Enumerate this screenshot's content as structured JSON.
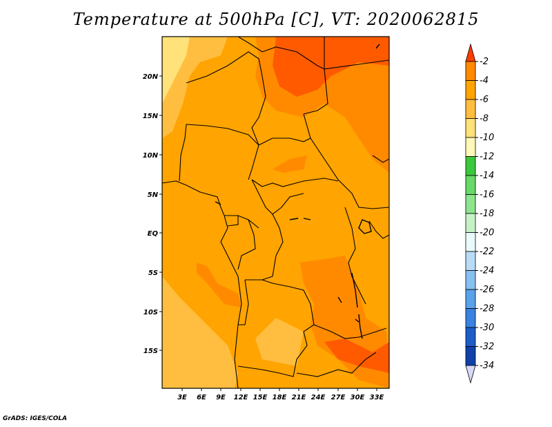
{
  "title": "Temperature at 500hPa [C], VT: 2020062815",
  "credit": "GrADS: IGES/COLA",
  "lat_ticks": [
    "20N",
    "15N",
    "10N",
    "5N",
    "EQ",
    "5S",
    "10S",
    "15S"
  ],
  "lon_ticks": [
    "3E",
    "6E",
    "9E",
    "12E",
    "15E",
    "18E",
    "21E",
    "24E",
    "27E",
    "30E",
    "33E"
  ],
  "colorbar": {
    "labels": [
      "-2",
      "-4",
      "-6",
      "-8",
      "-10",
      "-12",
      "-14",
      "-16",
      "-18",
      "-20",
      "-22",
      "-24",
      "-26",
      "-28",
      "-30",
      "-32",
      "-34"
    ],
    "colors": [
      "#ff5a00",
      "#ff8a00",
      "#ffa400",
      "#ffbe40",
      "#ffe27a",
      "#fff8b8",
      "#3cc83c",
      "#68d868",
      "#8ee48e",
      "#c4f2c4",
      "#e8fafa",
      "#b8dcf8",
      "#88c0f0",
      "#5aa2ea",
      "#3a82e0",
      "#1e5cc8",
      "#1040a8",
      "#0a1a78",
      "#d8d8f8"
    ],
    "top_color": "#ff3c00",
    "bottom_color": "#d8d8f8"
  }
}
